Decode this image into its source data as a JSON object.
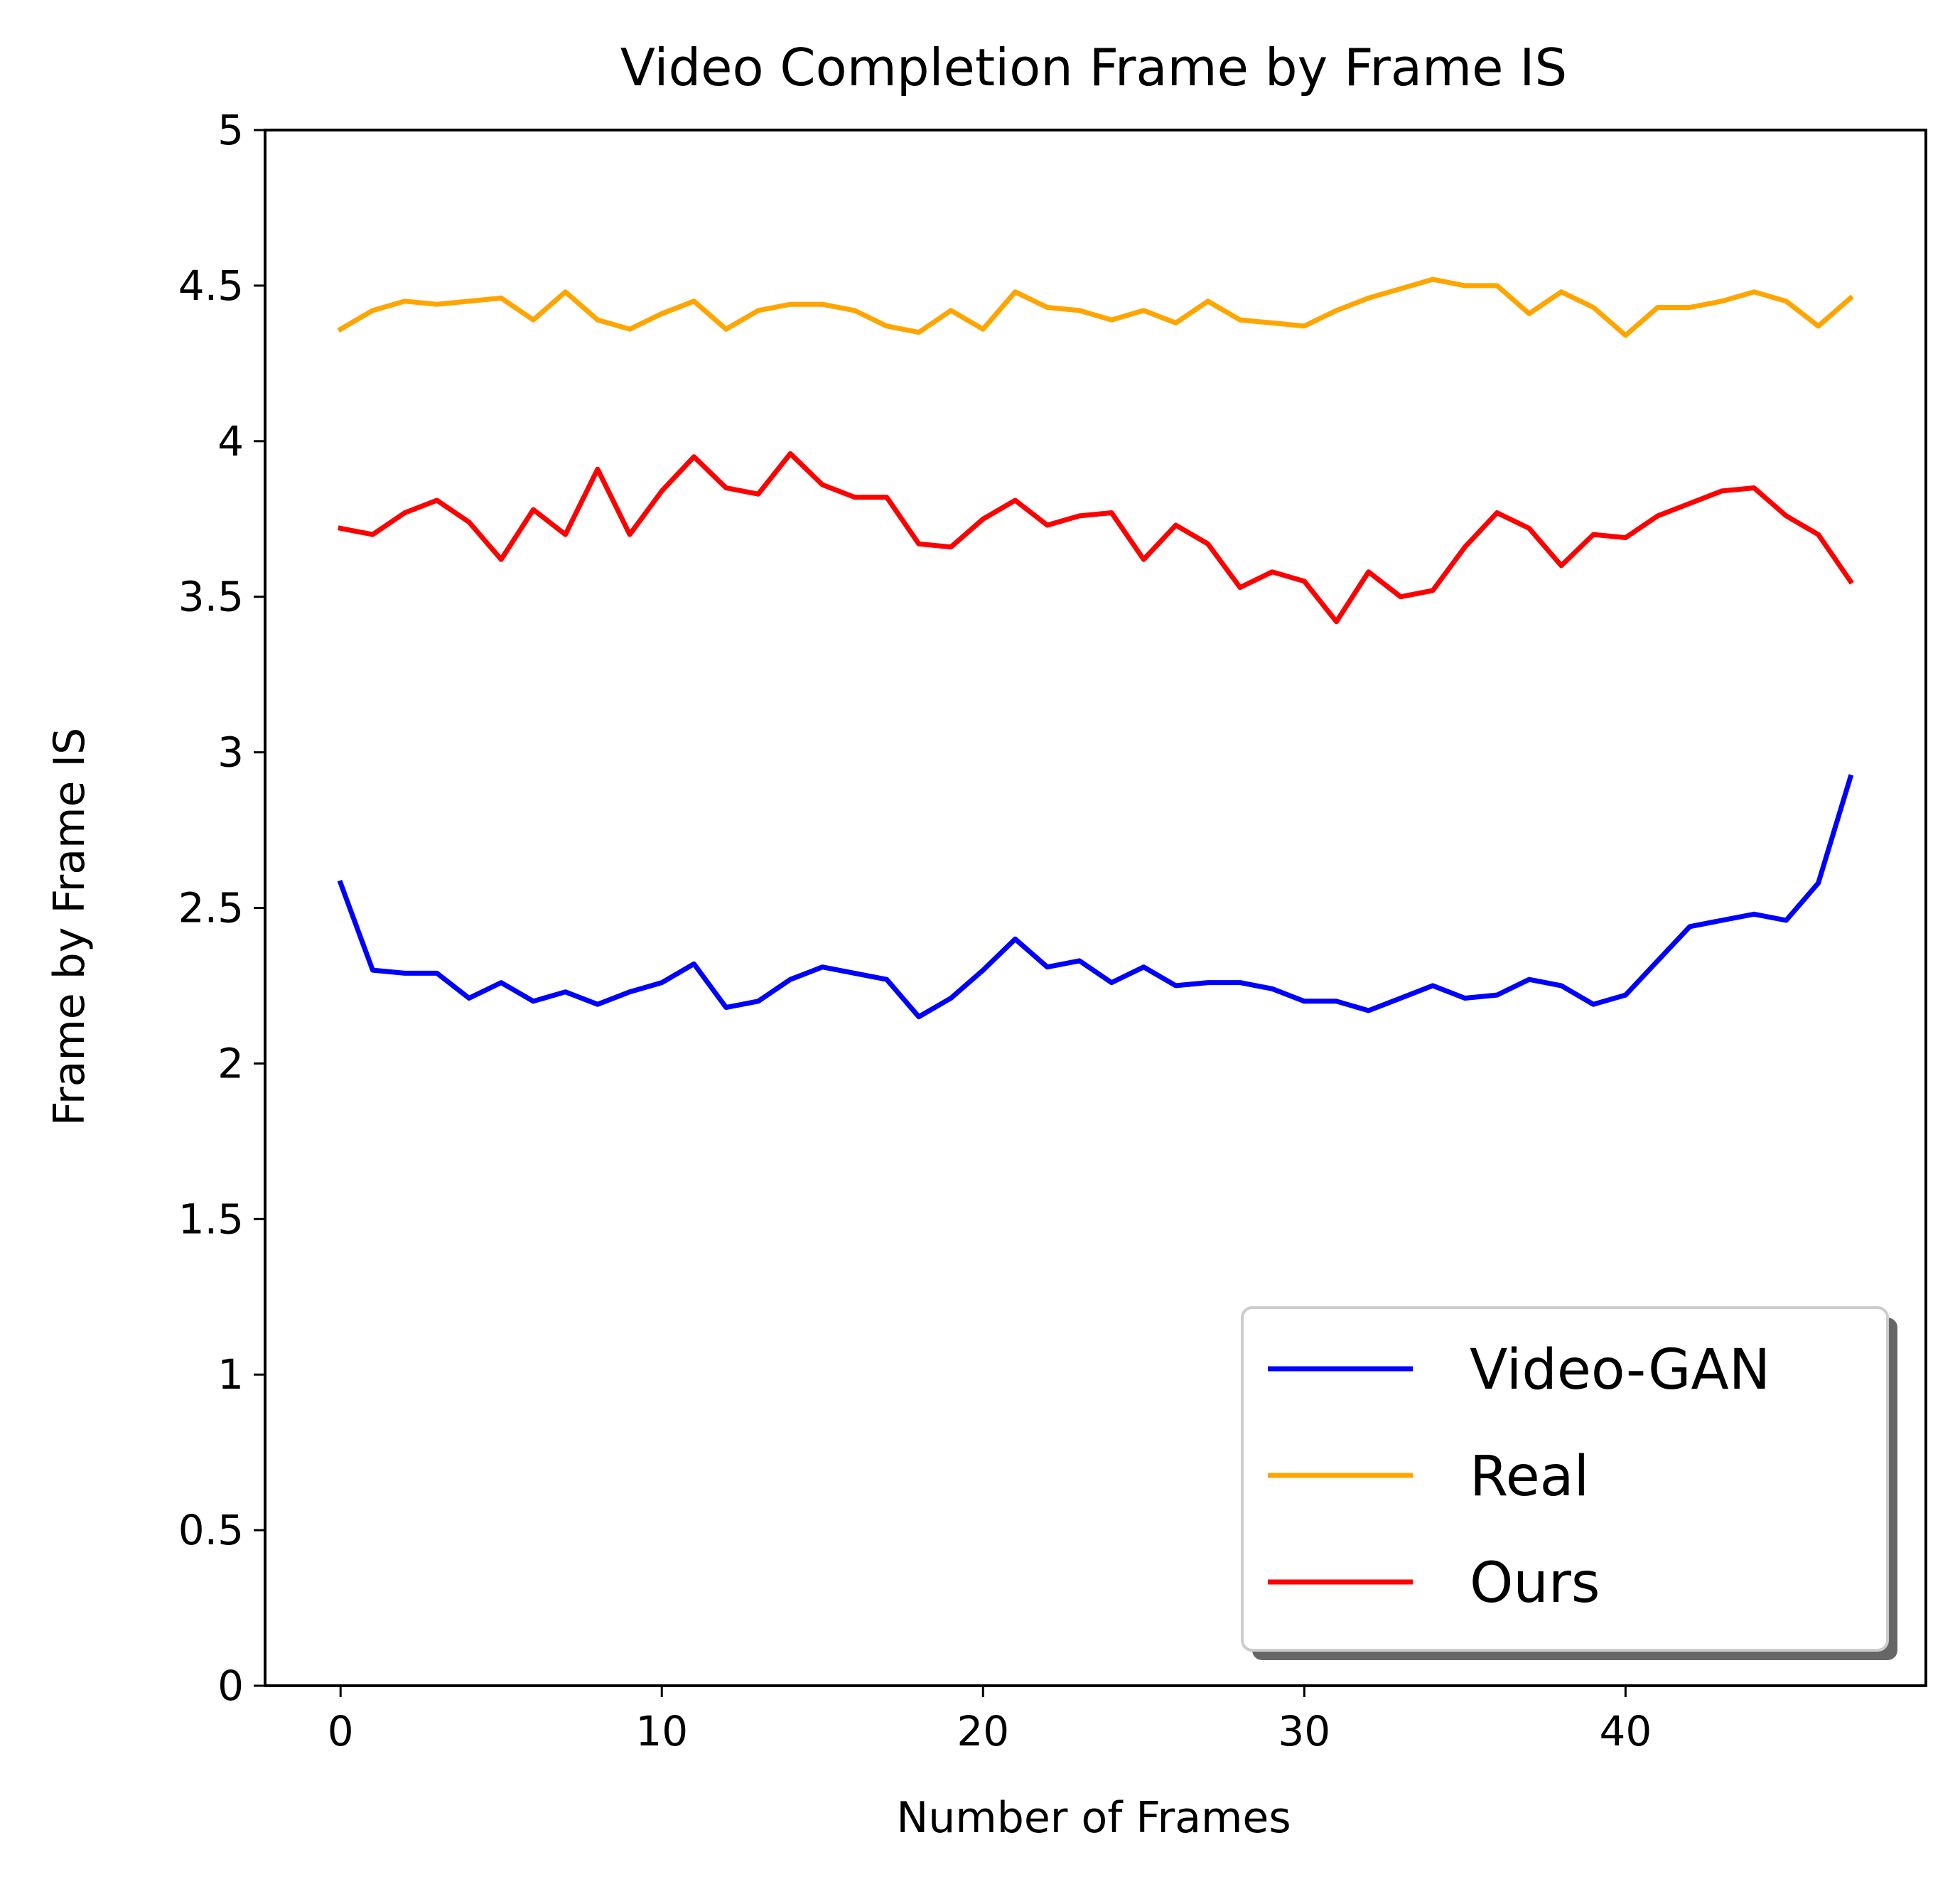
{
  "chart_data": {
    "type": "line",
    "title": "Video Completion Frame by Frame IS",
    "xlabel": "Number of Frames",
    "ylabel": "Frame by Frame IS",
    "xlim": [
      -2.35,
      49.35
    ],
    "ylim": [
      0,
      5
    ],
    "xticks": [
      0,
      10,
      20,
      30,
      40
    ],
    "yticks": [
      0,
      0.5,
      1,
      1.5,
      2,
      2.5,
      3,
      3.5,
      4,
      4.5,
      5
    ],
    "ytick_labels": [
      "0",
      "0.5",
      "1",
      "1.5",
      "2",
      "2.5",
      "3",
      "3.5",
      "4",
      "4.5",
      "5"
    ],
    "grid": false,
    "legend_position": "lower-right",
    "x": [
      0,
      1,
      2,
      3,
      4,
      5,
      6,
      7,
      8,
      9,
      10,
      11,
      12,
      13,
      14,
      15,
      16,
      17,
      18,
      19,
      20,
      21,
      22,
      23,
      24,
      25,
      26,
      27,
      28,
      29,
      30,
      31,
      32,
      33,
      34,
      35,
      36,
      37,
      38,
      39,
      40,
      41,
      42,
      43,
      44,
      45,
      46,
      47
    ],
    "series": [
      {
        "name": "Video-GAN",
        "color": "#0000ff",
        "values": [
          2.58,
          2.3,
          2.29,
          2.29,
          2.21,
          2.26,
          2.2,
          2.23,
          2.19,
          2.23,
          2.26,
          2.32,
          2.18,
          2.2,
          2.27,
          2.31,
          2.29,
          2.27,
          2.15,
          2.21,
          2.3,
          2.4,
          2.31,
          2.33,
          2.26,
          2.31,
          2.25,
          2.26,
          2.26,
          2.24,
          2.2,
          2.2,
          2.17,
          2.21,
          2.25,
          2.21,
          2.22,
          2.27,
          2.25,
          2.19,
          2.22,
          2.33,
          2.44,
          2.46,
          2.48,
          2.46,
          2.58,
          2.92
        ]
      },
      {
        "name": "Real",
        "color": "#ffa500",
        "values": [
          4.36,
          4.42,
          4.45,
          4.44,
          4.45,
          4.46,
          4.39,
          4.48,
          4.39,
          4.36,
          4.41,
          4.45,
          4.36,
          4.42,
          4.44,
          4.44,
          4.42,
          4.37,
          4.35,
          4.42,
          4.36,
          4.48,
          4.43,
          4.42,
          4.39,
          4.42,
          4.38,
          4.45,
          4.39,
          4.38,
          4.37,
          4.42,
          4.46,
          4.49,
          4.52,
          4.5,
          4.5,
          4.41,
          4.48,
          4.43,
          4.34,
          4.43,
          4.43,
          4.45,
          4.48,
          4.45,
          4.37,
          4.46
        ]
      },
      {
        "name": "Ours",
        "color": "#ff0000",
        "values": [
          3.72,
          3.7,
          3.77,
          3.81,
          3.74,
          3.62,
          3.78,
          3.7,
          3.91,
          3.7,
          3.84,
          3.95,
          3.85,
          3.83,
          3.96,
          3.86,
          3.82,
          3.82,
          3.67,
          3.66,
          3.75,
          3.81,
          3.73,
          3.76,
          3.77,
          3.62,
          3.73,
          3.67,
          3.53,
          3.58,
          3.55,
          3.42,
          3.58,
          3.5,
          3.52,
          3.66,
          3.77,
          3.72,
          3.6,
          3.7,
          3.69,
          3.76,
          3.8,
          3.84,
          3.85,
          3.76,
          3.7,
          3.55
        ]
      }
    ]
  }
}
